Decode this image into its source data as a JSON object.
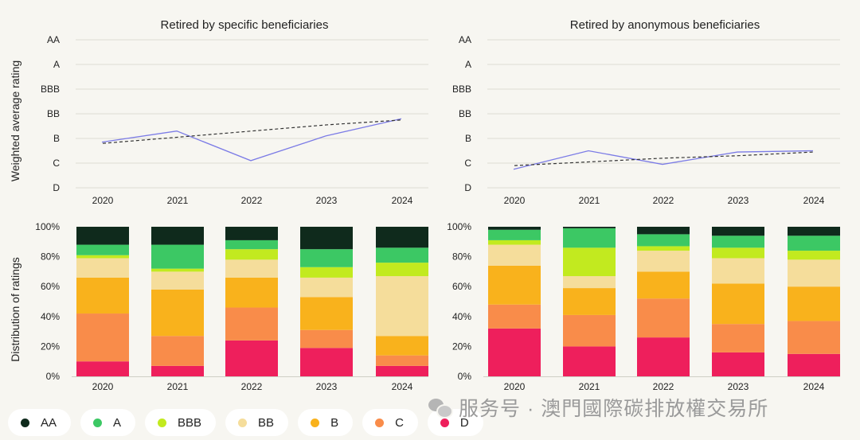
{
  "chart_data": [
    {
      "type": "line",
      "title": "Retired by specific beneficiaries",
      "ylabel": "Weighted average rating",
      "x": [
        "2020",
        "2021",
        "2022",
        "2023",
        "2024"
      ],
      "y_ticks": [
        "AA",
        "A",
        "BBB",
        "BB",
        "B",
        "C",
        "D"
      ],
      "series": [
        {
          "values": [
            1.85,
            2.3,
            1.1,
            2.1,
            2.8
          ],
          "style": "solid",
          "color": "#7b7be6"
        },
        {
          "values": [
            1.8,
            2.05,
            2.3,
            2.55,
            2.75
          ],
          "style": "dashed",
          "color": "#333333"
        }
      ]
    },
    {
      "type": "line",
      "title": "Retired by anonymous beneficiaries",
      "ylabel": "",
      "x": [
        "2020",
        "2021",
        "2022",
        "2023",
        "2024"
      ],
      "y_ticks": [
        "AA",
        "A",
        "BBB",
        "BB",
        "B",
        "C",
        "D"
      ],
      "series": [
        {
          "values": [
            0.75,
            1.5,
            0.95,
            1.45,
            1.5
          ],
          "style": "solid",
          "color": "#7b7be6"
        },
        {
          "values": [
            0.9,
            1.05,
            1.2,
            1.3,
            1.45
          ],
          "style": "dashed",
          "color": "#333333"
        }
      ]
    },
    {
      "type": "bar",
      "stacked": true,
      "ylabel": "Distribution of ratings",
      "categories": [
        "2020",
        "2021",
        "2022",
        "2023",
        "2024"
      ],
      "y_ticks": [
        "0%",
        "20%",
        "40%",
        "60%",
        "80%",
        "100%"
      ],
      "series": [
        {
          "name": "D",
          "values": [
            10,
            7,
            24,
            19,
            7
          ]
        },
        {
          "name": "C",
          "values": [
            32,
            20,
            22,
            12,
            7
          ]
        },
        {
          "name": "B",
          "values": [
            24,
            31,
            20,
            22,
            13
          ]
        },
        {
          "name": "BB",
          "values": [
            13,
            12,
            12,
            13,
            40
          ]
        },
        {
          "name": "BBB",
          "values": [
            2,
            2,
            7,
            7,
            9
          ]
        },
        {
          "name": "A",
          "values": [
            7,
            16,
            6,
            12,
            10
          ]
        },
        {
          "name": "AA",
          "values": [
            12,
            12,
            9,
            15,
            14
          ]
        }
      ]
    },
    {
      "type": "bar",
      "stacked": true,
      "ylabel": "",
      "categories": [
        "2020",
        "2021",
        "2022",
        "2023",
        "2024"
      ],
      "y_ticks": [
        "0%",
        "20%",
        "40%",
        "60%",
        "80%",
        "100%"
      ],
      "series": [
        {
          "name": "D",
          "values": [
            32,
            20,
            26,
            16,
            15
          ]
        },
        {
          "name": "C",
          "values": [
            16,
            21,
            26,
            19,
            22
          ]
        },
        {
          "name": "B",
          "values": [
            26,
            18,
            18,
            27,
            23
          ]
        },
        {
          "name": "BB",
          "values": [
            14,
            8,
            14,
            17,
            18
          ]
        },
        {
          "name": "BBB",
          "values": [
            3,
            19,
            3,
            7,
            6
          ]
        },
        {
          "name": "A",
          "values": [
            7,
            13,
            8,
            8,
            10
          ]
        },
        {
          "name": "AA",
          "values": [
            2,
            1,
            5,
            6,
            6
          ]
        }
      ]
    }
  ],
  "colors": {
    "AA": "#0f2a1c",
    "A": "#3cc864",
    "BBB": "#c2ea1f",
    "BB": "#f5dd9b",
    "B": "#f9b21c",
    "C": "#f98c4a",
    "D": "#ee1f5c"
  },
  "legend": [
    {
      "label": "AA",
      "color": "#0f2a1c"
    },
    {
      "label": "A",
      "color": "#3cc864"
    },
    {
      "label": "BBB",
      "color": "#c2ea1f"
    },
    {
      "label": "BB",
      "color": "#f5dd9b"
    },
    {
      "label": "B",
      "color": "#f9b21c"
    },
    {
      "label": "C",
      "color": "#f98c4a"
    },
    {
      "label": "D",
      "color": "#ee1f5c"
    }
  ],
  "watermark": {
    "text": "服务号 · 澳門國際碳排放權交易所",
    "icon": "wechat-icon"
  }
}
